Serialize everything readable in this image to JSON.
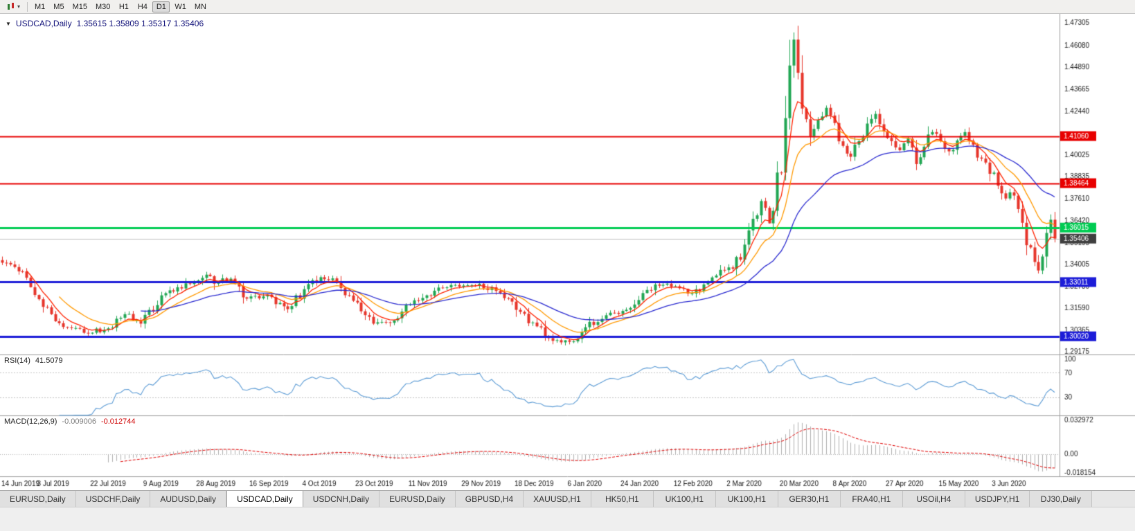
{
  "toolbar": {
    "timeframes": [
      "M1",
      "M5",
      "M15",
      "M30",
      "H1",
      "H4",
      "D1",
      "W1",
      "MN"
    ],
    "active_timeframe": "D1"
  },
  "chart": {
    "title_symbol": "USDCAD,Daily",
    "title_ohlc": "1.35615 1.35809 1.35317 1.35406"
  },
  "rsi_panel": {
    "label": "RSI(14)",
    "value": "41.5079",
    "axis_labels": [
      {
        "text": "100",
        "value": 100
      },
      {
        "text": "70",
        "value": 70
      },
      {
        "text": "30",
        "value": 30
      }
    ]
  },
  "macd_panel": {
    "label": "MACD(12,26,9)",
    "value_main": "-0.009006",
    "value_signal": "-0.012744",
    "axis_labels": [
      {
        "text": "0.032972",
        "value": 0.032972
      },
      {
        "text": "0.00",
        "value": 0
      },
      {
        "text": "-0.018154",
        "value": -0.018154
      }
    ]
  },
  "tabs": {
    "items": [
      "EURUSD,Daily",
      "USDCHF,Daily",
      "AUDUSD,Daily",
      "USDCAD,Daily",
      "USDCNH,Daily",
      "EURUSD,Daily",
      "GBPUSD,H4",
      "XAUUSD,H1",
      "HK50,H1",
      "UK100,H1",
      "UK100,H1",
      "GER30,H1",
      "FRA40,H1",
      "USOil,H4",
      "USDJPY,H1",
      "DJ30,Daily"
    ],
    "active_index": 3
  },
  "chart_data": [
    {
      "type": "candlestick",
      "title": "USDCAD,Daily",
      "bars_total": 259,
      "ylim": [
        1.2902,
        1.478
      ],
      "up_color": "#21a653",
      "down_color": "#e6352b",
      "y_axis_labels": [
        "1.47305",
        "1.46080",
        "1.44890",
        "1.43665",
        "1.42440",
        "1.40025",
        "1.38835",
        "1.37610",
        "1.36420",
        "1.35195",
        "1.34005",
        "1.32780",
        "1.31590",
        "1.30365",
        "1.29175"
      ],
      "x_labels": [
        "14 Jun 2019",
        "3 Jul 2019",
        "22 Jul 2019",
        "9 Aug 2019",
        "28 Aug 2019",
        "16 Sep 2019",
        "4 Oct 2019",
        "23 Oct 2019",
        "11 Nov 2019",
        "29 Nov 2019",
        "18 Dec 2019",
        "6 Jan 2020",
        "24 Jan 2020",
        "12 Feb 2020",
        "2 Mar 2020",
        "20 Mar 2020",
        "8 Apr 2020",
        "27 Apr 2020",
        "15 May 2020",
        "3 Jun 2020"
      ],
      "x_label_bar_step": 13,
      "levels": [
        {
          "value": 1.4106,
          "label": "1.41060",
          "color": "#e80000",
          "width": 2
        },
        {
          "value": 1.38464,
          "label": "1.38464",
          "color": "#e80000",
          "width": 2
        },
        {
          "value": 1.36015,
          "label": "1.36015",
          "color": "#00cc52",
          "width": 3
        },
        {
          "value": 1.33011,
          "label": "1.33011",
          "color": "#1c1cd8",
          "width": 3
        },
        {
          "value": 1.3002,
          "label": "1.30020",
          "color": "#1c1cd8",
          "width": 3
        }
      ],
      "current_price": {
        "value": 1.35406,
        "label": "1.35406",
        "line_color": "#c0c0c0",
        "tag_color": "#3f3f3f"
      },
      "ma_lines": [
        {
          "name": "fast-ma",
          "period": 6,
          "color": "#ff2200"
        },
        {
          "name": "medium-ma",
          "period": 14,
          "color": "#ff9900"
        },
        {
          "name": "slow-ma",
          "period": 34,
          "color": "#2a2ad0"
        }
      ],
      "close_anchors": [
        [
          0,
          1.3408
        ],
        [
          4,
          1.336
        ],
        [
          8,
          1.323
        ],
        [
          13,
          1.3085
        ],
        [
          18,
          1.3048
        ],
        [
          22,
          1.3022
        ],
        [
          26,
          1.3046
        ],
        [
          30,
          1.3124
        ],
        [
          34,
          1.3072
        ],
        [
          39,
          1.3228
        ],
        [
          44,
          1.3266
        ],
        [
          48,
          1.331
        ],
        [
          50,
          1.3342
        ],
        [
          52,
          1.3292
        ],
        [
          56,
          1.332
        ],
        [
          60,
          1.321
        ],
        [
          65,
          1.3232
        ],
        [
          70,
          1.3152
        ],
        [
          74,
          1.3262
        ],
        [
          78,
          1.3328
        ],
        [
          82,
          1.3305
        ],
        [
          86,
          1.3198
        ],
        [
          91,
          1.3072
        ],
        [
          96,
          1.309
        ],
        [
          100,
          1.3178
        ],
        [
          104,
          1.3228
        ],
        [
          108,
          1.3268
        ],
        [
          113,
          1.3282
        ],
        [
          117,
          1.3292
        ],
        [
          121,
          1.3252
        ],
        [
          126,
          1.3148
        ],
        [
          130,
          1.3078
        ],
        [
          134,
          1.2992
        ],
        [
          139,
          1.2972
        ],
        [
          143,
          1.3052
        ],
        [
          147,
          1.3098
        ],
        [
          152,
          1.3142
        ],
        [
          156,
          1.3202
        ],
        [
          160,
          1.3288
        ],
        [
          165,
          1.3278
        ],
        [
          169,
          1.3238
        ],
        [
          173,
          1.3302
        ],
        [
          178,
          1.3382
        ],
        [
          181,
          1.3425
        ],
        [
          184,
          1.365
        ],
        [
          186,
          1.3748
        ],
        [
          188,
          1.3625
        ],
        [
          190,
          1.3905
        ],
        [
          192,
          1.4205
        ],
        [
          193,
          1.4495
        ],
        [
          194,
          1.4638
        ],
        [
          195,
          1.4455
        ],
        [
          196,
          1.4258
        ],
        [
          198,
          1.4105
        ],
        [
          200,
          1.4195
        ],
        [
          202,
          1.4262
        ],
        [
          204,
          1.4178
        ],
        [
          206,
          1.4052
        ],
        [
          208,
          1.3992
        ],
        [
          210,
          1.4078
        ],
        [
          212,
          1.4175
        ],
        [
          214,
          1.4228
        ],
        [
          216,
          1.4132
        ],
        [
          218,
          1.4078
        ],
        [
          220,
          1.4028
        ],
        [
          222,
          1.4092
        ],
        [
          224,
          1.3952
        ],
        [
          226,
          1.4048
        ],
        [
          228,
          1.4128
        ],
        [
          230,
          1.4078
        ],
        [
          232,
          1.4022
        ],
        [
          234,
          1.4082
        ],
        [
          236,
          1.4128
        ],
        [
          238,
          1.4058
        ],
        [
          240,
          1.3982
        ],
        [
          242,
          1.3898
        ],
        [
          244,
          1.3832
        ],
        [
          246,
          1.3762
        ],
        [
          248,
          1.3778
        ],
        [
          250,
          1.3628
        ],
        [
          252,
          1.3492
        ],
        [
          253,
          1.3412
        ],
        [
          254,
          1.3365
        ],
        [
          255,
          1.3442
        ],
        [
          256,
          1.3572
        ],
        [
          257,
          1.3645
        ],
        [
          258,
          1.3541
        ]
      ]
    },
    {
      "type": "line",
      "name": "RSI",
      "period": 14,
      "source": "derived-from-candlestick-closes",
      "ylim": [
        0,
        100
      ],
      "dashed_levels": [
        70,
        30
      ],
      "line_color": "#5b9bd5",
      "current_value": 41.5079
    },
    {
      "type": "macd_histogram",
      "name": "MACD",
      "fast": 12,
      "slow": 26,
      "signal": 9,
      "source": "derived-from-candlestick-closes",
      "ylim": [
        -0.018154,
        0.032972
      ],
      "histogram_color": "#b0b0b0",
      "signal_color": "#e00000",
      "current_macd": -0.009006,
      "current_signal": -0.012744
    }
  ]
}
